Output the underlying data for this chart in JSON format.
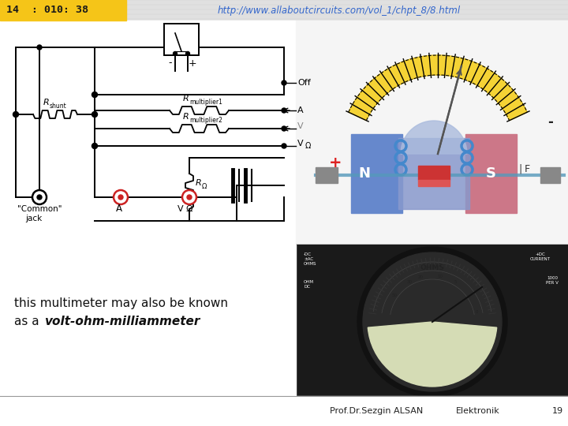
{
  "slide_bg": "#e0e0e0",
  "header_bg": "#f5c518",
  "header_text": "14  : 010: 38",
  "header_text_color": "#1a1a1a",
  "url_text": "http://www.allaboutcircuits.com/vol_1/chpt_8/8.html",
  "url_color": "#3366cc",
  "url_fontsize": 8.5,
  "main_text_line1": "this multimeter may also be known",
  "main_text_line2": "as a ",
  "main_text_italic": "volt-ohm-milliammeter",
  "main_text_color": "#111111",
  "main_text_fontsize": 11,
  "footer_text1": "Prof.Dr.Sezgin ALSAN",
  "footer_text2": "Elektronik",
  "footer_text3": "19",
  "footer_color": "#222222",
  "footer_fontsize": 8,
  "circuit_bg": "#ffffff",
  "galv_bg": "#f0f0f0",
  "meter_bg": "#1e1e1e",
  "meter_face_color": "#d8dfc0",
  "stripe_color": "#cccccc"
}
